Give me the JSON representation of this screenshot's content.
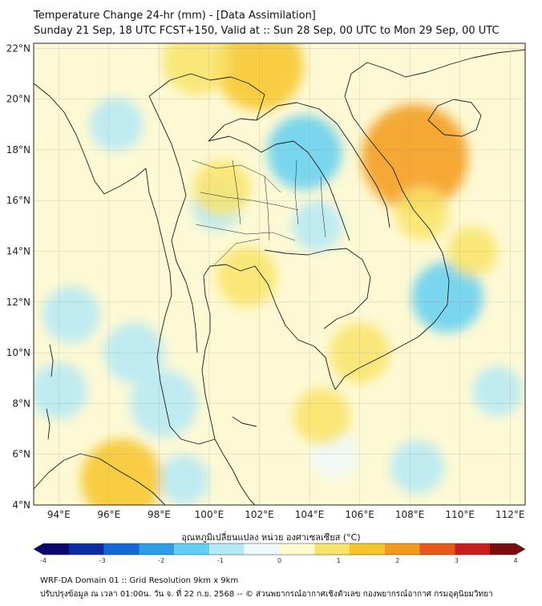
{
  "title": {
    "line1": "Temperature Change 24-hr (mm) - [Data Assimilation]",
    "line2": "Sunday 21 Sep, 18 UTC FCST+150, Valid at :: Sun 28 Sep, 00 UTC to Mon 29 Sep, 00 UTC"
  },
  "map": {
    "lat_labels": [
      "22°N",
      "20°N",
      "18°N",
      "16°N",
      "14°N",
      "12°N",
      "10°N",
      "8°N",
      "6°N",
      "4°N"
    ],
    "lon_labels": [
      "94°E",
      "96°E",
      "98°E",
      "100°E",
      "102°E",
      "104°E",
      "106°E",
      "108°E",
      "110°E",
      "112°E"
    ],
    "lat_range": [
      4,
      22.2
    ],
    "lon_range": [
      93,
      112.6
    ],
    "background_color": "#fdf9d4",
    "anomalies": [
      {
        "lon": 103.8,
        "lat": 17.9,
        "value": -1.3
      },
      {
        "lon": 109.5,
        "lat": 12.2,
        "value": -1.2
      },
      {
        "lon": 98.2,
        "lat": 8.0,
        "value": -1.1
      },
      {
        "lon": 97.0,
        "lat": 10.0,
        "value": -0.9
      },
      {
        "lon": 94.5,
        "lat": 11.5,
        "value": -0.8
      },
      {
        "lon": 96.3,
        "lat": 19.0,
        "value": -0.7
      },
      {
        "lon": 94.0,
        "lat": 8.5,
        "value": -0.8
      },
      {
        "lon": 108.3,
        "lat": 5.5,
        "value": -0.7
      },
      {
        "lon": 104.3,
        "lat": 15.0,
        "value": -0.6
      },
      {
        "lon": 100.3,
        "lat": 15.8,
        "value": -0.6
      },
      {
        "lon": 99.0,
        "lat": 5.0,
        "value": -0.6
      },
      {
        "lon": 111.5,
        "lat": 8.5,
        "value": -0.6
      },
      {
        "lon": 105.0,
        "lat": 6.0,
        "value": -0.5
      },
      {
        "lon": 108.2,
        "lat": 17.7,
        "value": 2.2
      },
      {
        "lon": 102.0,
        "lat": 21.3,
        "value": 1.7
      },
      {
        "lon": 96.5,
        "lat": 5.0,
        "value": 1.5
      },
      {
        "lon": 99.5,
        "lat": 21.5,
        "value": 1.1
      },
      {
        "lon": 101.5,
        "lat": 13.0,
        "value": 0.9
      },
      {
        "lon": 106.0,
        "lat": 10.0,
        "value": 0.9
      },
      {
        "lon": 104.5,
        "lat": 7.5,
        "value": 0.8
      },
      {
        "lon": 100.5,
        "lat": 16.5,
        "value": 0.8
      },
      {
        "lon": 108.5,
        "lat": 15.5,
        "value": 0.7
      },
      {
        "lon": 110.5,
        "lat": 14.0,
        "value": 0.6
      }
    ]
  },
  "colorbar": {
    "label": "อุณหภูมิเปลี่ยนแปลง หน่วย องศาเซลเซียส (°C)",
    "ticks": [
      "-4",
      "-3",
      "-2",
      "-1",
      "0",
      "1",
      "2",
      "3",
      "4"
    ],
    "range": [
      -4,
      4
    ],
    "colors": [
      "#0a0a6e",
      "#0d2aa8",
      "#1467d6",
      "#2a9fe8",
      "#63cff2",
      "#b4e9f6",
      "#eef9fb",
      "#fdf9cf",
      "#f9e46a",
      "#f7c52a",
      "#f39a1b",
      "#e9581a",
      "#c81d1d",
      "#7a0c0c"
    ]
  },
  "footer": {
    "line1": "WRF-DA Domain 01 :: Grid Resolution 9km x 9km",
    "line2": "ปรับปรุงข้อมูล ณ เวลา 01:00น. วัน จ. ที่ 22 ก.ย. 2568 -- © ส่วนพยากรณ์อากาศเชิงตัวเลข กองพยากรณ์อากาศ กรมอุตุนิยมวิทยา"
  }
}
